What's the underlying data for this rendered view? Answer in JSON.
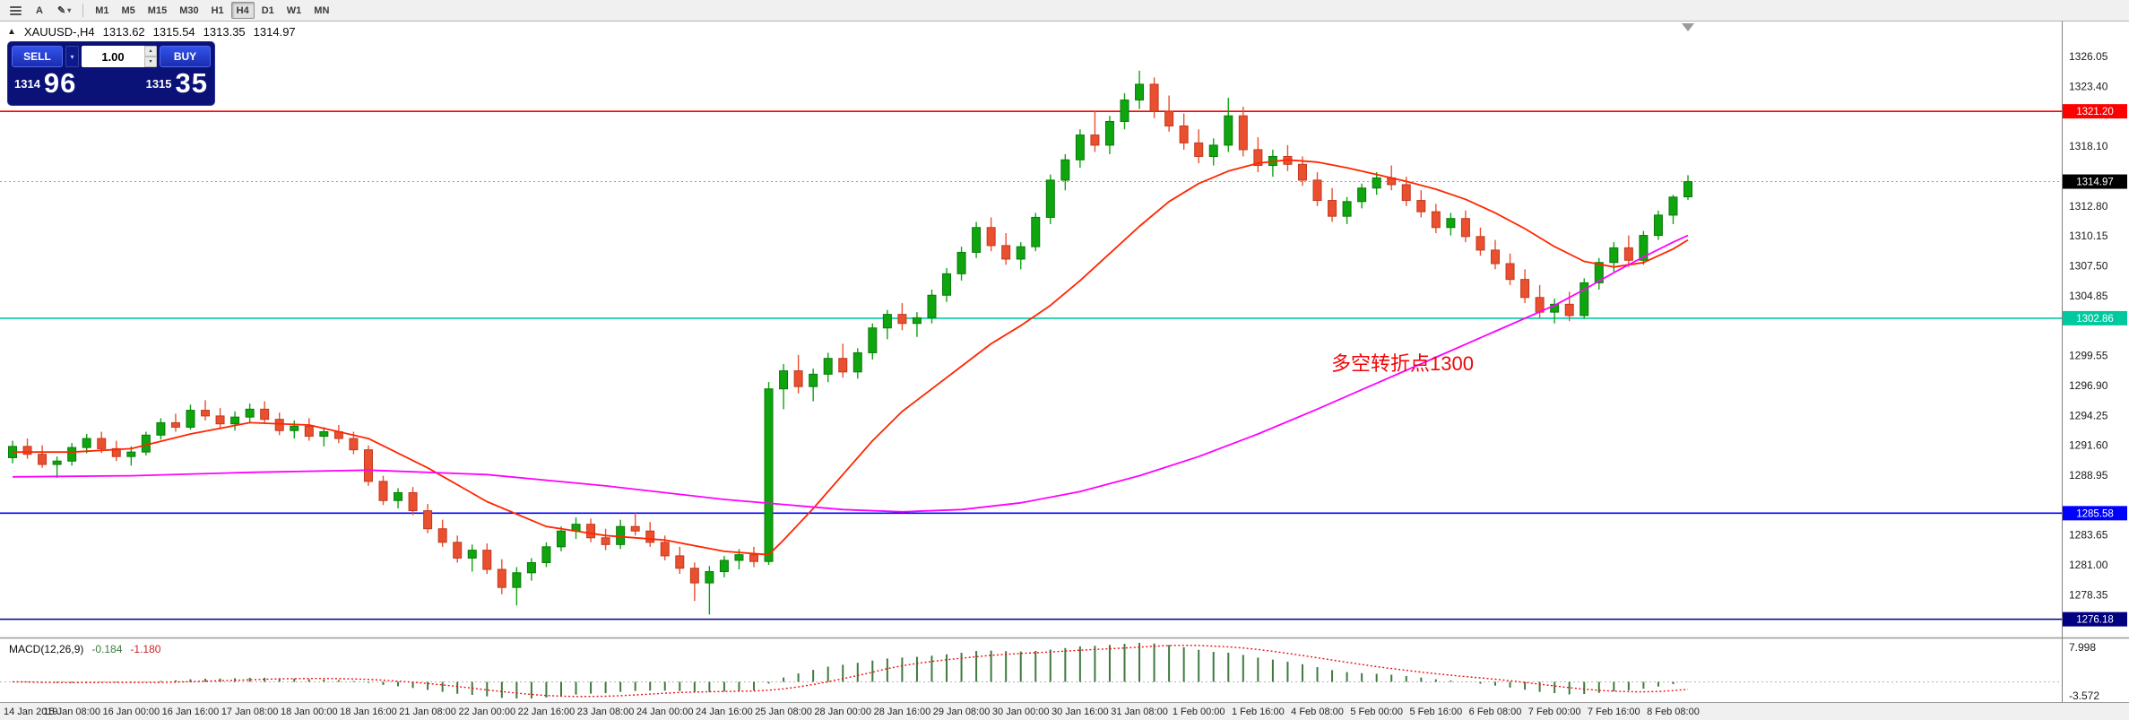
{
  "toolbar": {
    "timeframes": [
      "M1",
      "M5",
      "M15",
      "M30",
      "H1",
      "H4",
      "D1",
      "W1",
      "MN"
    ],
    "active_timeframe": "H4",
    "letter_tool": "A"
  },
  "icons": {
    "pencil": "✎",
    "chevron_down": "▾",
    "chevron_up": "▴",
    "legend_marker": "▲"
  },
  "legend": {
    "symbol_period": "XAUUSD-,H4",
    "open": "1313.62",
    "high": "1315.54",
    "low": "1313.35",
    "close": "1314.97"
  },
  "trade_panel": {
    "sell_label": "SELL",
    "buy_label": "BUY",
    "lot_value": "1.00",
    "bid_small": "1314",
    "bid_big": "96",
    "ask_small": "1315",
    "ask_big": "35"
  },
  "annotation": {
    "text": "多空转折点1300",
    "color": "#f00505"
  },
  "chart_data": {
    "type": "candlestick",
    "symbol": "XAUUSD-",
    "period": "H4",
    "title": "XAUUSD-,H4 1313.62 1315.54 1313.35 1314.97",
    "price_range": {
      "min": 1274.8,
      "max": 1329.0
    },
    "grid_step": 2.65,
    "candle_colors": {
      "up": "#0fa50f",
      "up_stroke": "#0a7a0a",
      "down": "#ea4f2f",
      "down_stroke": "#c03a1e"
    },
    "price_axis_labels": [
      1326.05,
      1323.4,
      1318.1,
      1312.8,
      1310.15,
      1307.5,
      1304.85,
      1299.55,
      1296.9,
      1294.25,
      1291.6,
      1288.95,
      1283.65,
      1281.0,
      1278.35
    ],
    "hlines": [
      {
        "price": 1321.2,
        "label": "1321.20",
        "color": "#ff0000"
      },
      {
        "price": 1302.86,
        "label": "1302.86",
        "color": "#00c9a0"
      },
      {
        "price": 1285.58,
        "label": "1285.58",
        "color": "#0000ff"
      },
      {
        "price": 1276.18,
        "label": "1276.18",
        "color": "#000080"
      }
    ],
    "current_price": {
      "value": 1314.97,
      "label": "1314.97",
      "label_bg": "#000000"
    },
    "ma_fast": {
      "name": "fast-ma",
      "color": "#ff2600",
      "points": [
        [
          0,
          1291.0
        ],
        [
          4,
          1291.0
        ],
        [
          8,
          1291.3
        ],
        [
          12,
          1292.6
        ],
        [
          16,
          1293.6
        ],
        [
          20,
          1293.4
        ],
        [
          24,
          1292.2
        ],
        [
          28,
          1289.6
        ],
        [
          32,
          1286.6
        ],
        [
          36,
          1284.4
        ],
        [
          40,
          1283.6
        ],
        [
          44,
          1283.2
        ],
        [
          48,
          1282.2
        ],
        [
          51,
          1281.9
        ],
        [
          52,
          1283.2
        ],
        [
          54,
          1286.0
        ],
        [
          56,
          1289.0
        ],
        [
          58,
          1292.0
        ],
        [
          60,
          1294.6
        ],
        [
          62,
          1296.6
        ],
        [
          64,
          1298.6
        ],
        [
          66,
          1300.6
        ],
        [
          68,
          1302.2
        ],
        [
          70,
          1304.0
        ],
        [
          72,
          1306.2
        ],
        [
          74,
          1308.6
        ],
        [
          76,
          1311.0
        ],
        [
          78,
          1313.2
        ],
        [
          80,
          1314.8
        ],
        [
          82,
          1315.9
        ],
        [
          84,
          1316.6
        ],
        [
          86,
          1316.9
        ],
        [
          88,
          1316.7
        ],
        [
          90,
          1316.2
        ],
        [
          92,
          1315.6
        ],
        [
          94,
          1315.0
        ],
        [
          96,
          1314.3
        ],
        [
          98,
          1313.4
        ],
        [
          100,
          1312.2
        ],
        [
          102,
          1310.8
        ],
        [
          104,
          1309.2
        ],
        [
          106,
          1307.9
        ],
        [
          108,
          1307.4
        ],
        [
          110,
          1307.8
        ],
        [
          112,
          1309.0
        ],
        [
          113,
          1309.8
        ]
      ]
    },
    "ma_slow": {
      "name": "slow-ma",
      "color": "#ff00ff",
      "points": [
        [
          0,
          1288.8
        ],
        [
          8,
          1288.9
        ],
        [
          16,
          1289.2
        ],
        [
          24,
          1289.4
        ],
        [
          32,
          1289.0
        ],
        [
          40,
          1288.0
        ],
        [
          48,
          1286.8
        ],
        [
          56,
          1285.9
        ],
        [
          60,
          1285.7
        ],
        [
          64,
          1285.9
        ],
        [
          68,
          1286.5
        ],
        [
          72,
          1287.5
        ],
        [
          76,
          1288.9
        ],
        [
          80,
          1290.6
        ],
        [
          84,
          1292.6
        ],
        [
          88,
          1294.8
        ],
        [
          92,
          1297.1
        ],
        [
          96,
          1299.4
        ],
        [
          100,
          1301.7
        ],
        [
          104,
          1304.0
        ],
        [
          106,
          1305.4
        ],
        [
          108,
          1306.9
        ],
        [
          110,
          1308.3
        ],
        [
          112,
          1309.6
        ],
        [
          113,
          1310.2
        ]
      ]
    },
    "macd": {
      "title": "MACD(12,26,9)",
      "main_value": "-0.184",
      "signal_value": "-1.180",
      "axis_max": "7.998",
      "axis_min": "-3.572",
      "fast": 12,
      "slow": 26,
      "signal_period": 9,
      "histogram_color": "#3f7a3f",
      "signal_color": "#ee1111"
    },
    "label_every_candles": 4,
    "time_labels": [
      "14 Jan 2019",
      "15 Jan 08:00",
      "16 Jan 00:00",
      "16 Jan 16:00",
      "17 Jan 08:00",
      "18 Jan 00:00",
      "18 Jan 16:00",
      "21 Jan 08:00",
      "22 Jan 00:00",
      "22 Jan 16:00",
      "23 Jan 08:00",
      "24 Jan 00:00",
      "24 Jan 16:00",
      "25 Jan 08:00",
      "28 Jan 00:00",
      "28 Jan 16:00",
      "29 Jan 08:00",
      "30 Jan 00:00",
      "30 Jan 16:00",
      "31 Jan 08:00",
      "1 Feb 00:00",
      "1 Feb 16:00",
      "4 Feb 08:00",
      "5 Feb 00:00",
      "5 Feb 16:00",
      "6 Feb 08:00",
      "7 Feb 00:00",
      "7 Feb 16:00",
      "8 Feb 08:00"
    ],
    "candles": [
      [
        1290.5,
        1292.0,
        1290.0,
        1291.5
      ],
      [
        1291.5,
        1292.2,
        1290.4,
        1290.8
      ],
      [
        1290.8,
        1291.6,
        1289.6,
        1289.9
      ],
      [
        1289.9,
        1290.6,
        1288.7,
        1290.2
      ],
      [
        1290.2,
        1291.8,
        1289.8,
        1291.4
      ],
      [
        1291.4,
        1292.6,
        1290.9,
        1292.2
      ],
      [
        1292.2,
        1292.8,
        1290.9,
        1291.3
      ],
      [
        1291.3,
        1292.0,
        1290.2,
        1290.6
      ],
      [
        1290.6,
        1291.5,
        1289.8,
        1291.0
      ],
      [
        1291.0,
        1292.8,
        1290.7,
        1292.5
      ],
      [
        1292.5,
        1294.0,
        1292.1,
        1293.6
      ],
      [
        1293.6,
        1294.4,
        1292.8,
        1293.2
      ],
      [
        1293.2,
        1295.2,
        1293.0,
        1294.7
      ],
      [
        1294.7,
        1295.6,
        1293.8,
        1294.2
      ],
      [
        1294.2,
        1294.9,
        1293.1,
        1293.5
      ],
      [
        1293.5,
        1294.6,
        1292.9,
        1294.1
      ],
      [
        1294.1,
        1295.3,
        1293.6,
        1294.8
      ],
      [
        1294.8,
        1295.5,
        1293.5,
        1293.9
      ],
      [
        1293.9,
        1294.5,
        1292.5,
        1292.9
      ],
      [
        1292.9,
        1293.8,
        1292.2,
        1293.3
      ],
      [
        1293.3,
        1294.0,
        1292.0,
        1292.4
      ],
      [
        1292.4,
        1293.2,
        1291.5,
        1292.8
      ],
      [
        1292.8,
        1293.4,
        1291.8,
        1292.2
      ],
      [
        1292.2,
        1292.8,
        1290.8,
        1291.2
      ],
      [
        1291.2,
        1291.6,
        1288.0,
        1288.4
      ],
      [
        1288.4,
        1288.9,
        1286.3,
        1286.7
      ],
      [
        1286.7,
        1287.8,
        1286.0,
        1287.4
      ],
      [
        1287.4,
        1287.9,
        1285.4,
        1285.8
      ],
      [
        1285.8,
        1286.4,
        1283.8,
        1284.2
      ],
      [
        1284.2,
        1285.0,
        1282.6,
        1283.0
      ],
      [
        1283.0,
        1283.6,
        1281.2,
        1281.6
      ],
      [
        1281.6,
        1282.8,
        1280.4,
        1282.3
      ],
      [
        1282.3,
        1282.9,
        1280.2,
        1280.6
      ],
      [
        1280.6,
        1281.5,
        1278.4,
        1279.0
      ],
      [
        1279.0,
        1280.8,
        1277.4,
        1280.3
      ],
      [
        1280.3,
        1281.6,
        1279.6,
        1281.2
      ],
      [
        1281.2,
        1283.0,
        1280.8,
        1282.6
      ],
      [
        1282.6,
        1284.4,
        1282.2,
        1284.0
      ],
      [
        1284.0,
        1285.2,
        1283.3,
        1284.6
      ],
      [
        1284.6,
        1285.1,
        1283.0,
        1283.4
      ],
      [
        1283.4,
        1284.2,
        1282.3,
        1282.8
      ],
      [
        1282.8,
        1285.0,
        1282.4,
        1284.4
      ],
      [
        1284.4,
        1285.6,
        1283.6,
        1284.0
      ],
      [
        1284.0,
        1284.8,
        1282.6,
        1283.0
      ],
      [
        1283.0,
        1283.6,
        1281.4,
        1281.8
      ],
      [
        1281.8,
        1282.6,
        1280.2,
        1280.7
      ],
      [
        1280.7,
        1281.2,
        1277.8,
        1279.4
      ],
      [
        1279.4,
        1280.9,
        1276.6,
        1280.4
      ],
      [
        1280.4,
        1281.8,
        1279.9,
        1281.4
      ],
      [
        1281.4,
        1282.4,
        1280.6,
        1281.9
      ],
      [
        1281.9,
        1282.6,
        1280.8,
        1281.3
      ],
      [
        1281.3,
        1297.2,
        1281.0,
        1296.6
      ],
      [
        1296.6,
        1298.8,
        1294.8,
        1298.2
      ],
      [
        1298.2,
        1299.6,
        1296.2,
        1296.8
      ],
      [
        1296.8,
        1298.4,
        1295.5,
        1297.9
      ],
      [
        1297.9,
        1299.8,
        1297.2,
        1299.3
      ],
      [
        1299.3,
        1300.6,
        1297.6,
        1298.1
      ],
      [
        1298.1,
        1300.2,
        1297.5,
        1299.8
      ],
      [
        1299.8,
        1302.4,
        1299.2,
        1302.0
      ],
      [
        1302.0,
        1303.6,
        1301.0,
        1303.2
      ],
      [
        1303.2,
        1304.2,
        1301.8,
        1302.4
      ],
      [
        1302.4,
        1303.4,
        1301.2,
        1302.9
      ],
      [
        1302.9,
        1305.4,
        1302.4,
        1304.9
      ],
      [
        1304.9,
        1307.3,
        1304.3,
        1306.8
      ],
      [
        1306.8,
        1309.2,
        1306.2,
        1308.7
      ],
      [
        1308.7,
        1311.4,
        1308.2,
        1310.9
      ],
      [
        1310.9,
        1311.8,
        1308.8,
        1309.3
      ],
      [
        1309.3,
        1310.4,
        1307.6,
        1308.1
      ],
      [
        1308.1,
        1309.6,
        1307.2,
        1309.2
      ],
      [
        1309.2,
        1312.2,
        1308.8,
        1311.8
      ],
      [
        1311.8,
        1315.6,
        1311.2,
        1315.1
      ],
      [
        1315.1,
        1317.4,
        1314.2,
        1316.9
      ],
      [
        1316.9,
        1319.6,
        1316.2,
        1319.1
      ],
      [
        1319.1,
        1321.2,
        1317.6,
        1318.2
      ],
      [
        1318.2,
        1320.8,
        1317.4,
        1320.3
      ],
      [
        1320.3,
        1322.8,
        1319.6,
        1322.2
      ],
      [
        1322.2,
        1324.8,
        1321.4,
        1323.6
      ],
      [
        1323.6,
        1324.2,
        1320.6,
        1321.2
      ],
      [
        1321.2,
        1322.6,
        1319.4,
        1319.9
      ],
      [
        1319.9,
        1321.0,
        1317.8,
        1318.4
      ],
      [
        1318.4,
        1319.6,
        1316.6,
        1317.2
      ],
      [
        1317.2,
        1318.8,
        1316.4,
        1318.2
      ],
      [
        1318.2,
        1322.4,
        1317.6,
        1320.8
      ],
      [
        1320.8,
        1321.6,
        1317.2,
        1317.8
      ],
      [
        1317.8,
        1318.9,
        1315.8,
        1316.4
      ],
      [
        1316.4,
        1317.8,
        1315.4,
        1317.2
      ],
      [
        1317.2,
        1318.2,
        1315.9,
        1316.5
      ],
      [
        1316.5,
        1317.2,
        1314.6,
        1315.1
      ],
      [
        1315.1,
        1315.8,
        1312.8,
        1313.3
      ],
      [
        1313.3,
        1314.4,
        1311.4,
        1311.9
      ],
      [
        1311.9,
        1313.6,
        1311.2,
        1313.2
      ],
      [
        1313.2,
        1314.8,
        1312.6,
        1314.4
      ],
      [
        1314.4,
        1315.8,
        1313.8,
        1315.3
      ],
      [
        1315.3,
        1316.4,
        1314.2,
        1314.7
      ],
      [
        1314.7,
        1315.4,
        1312.8,
        1313.3
      ],
      [
        1313.3,
        1314.2,
        1311.8,
        1312.3
      ],
      [
        1312.3,
        1313.0,
        1310.4,
        1310.9
      ],
      [
        1310.9,
        1312.2,
        1310.2,
        1311.7
      ],
      [
        1311.7,
        1312.4,
        1309.6,
        1310.1
      ],
      [
        1310.1,
        1310.9,
        1308.4,
        1308.9
      ],
      [
        1308.9,
        1309.8,
        1307.2,
        1307.7
      ],
      [
        1307.7,
        1308.6,
        1305.8,
        1306.3
      ],
      [
        1306.3,
        1307.2,
        1304.2,
        1304.7
      ],
      [
        1304.7,
        1305.8,
        1302.9,
        1303.4
      ],
      [
        1303.4,
        1304.6,
        1302.4,
        1304.1
      ],
      [
        1304.1,
        1305.2,
        1302.6,
        1303.1
      ],
      [
        1303.1,
        1306.4,
        1302.8,
        1306.0
      ],
      [
        1306.0,
        1308.2,
        1305.4,
        1307.8
      ],
      [
        1307.8,
        1309.6,
        1307.0,
        1309.1
      ],
      [
        1309.1,
        1310.2,
        1307.4,
        1308.0
      ],
      [
        1308.0,
        1310.6,
        1307.6,
        1310.2
      ],
      [
        1310.2,
        1312.4,
        1309.8,
        1312.0
      ],
      [
        1312.0,
        1313.8,
        1311.2,
        1313.6
      ],
      [
        1313.62,
        1315.54,
        1313.35,
        1314.97
      ]
    ]
  }
}
